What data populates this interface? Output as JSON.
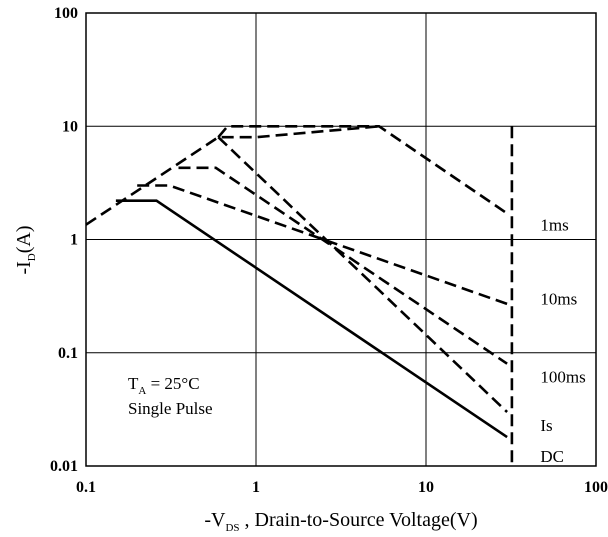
{
  "chart_data": {
    "type": "line",
    "x_scale": "log",
    "y_scale": "log",
    "xlim": [
      0.1,
      100
    ],
    "ylim": [
      0.01,
      100
    ],
    "grid": true,
    "x_ticks": [
      "0.1",
      "1",
      "10",
      "100"
    ],
    "y_ticks": [
      "100",
      "10",
      "1",
      "0.1",
      "0.01"
    ],
    "xlabel": {
      "prefix": "-V",
      "sub": "DS",
      "suffix": " , Drain-to-Source Voltage(V)"
    },
    "ylabel": {
      "prefix": "-I",
      "sub": "D",
      "suffix": "(A)"
    },
    "annotation": {
      "line1_prefix": "T",
      "line1_sub": "A",
      "line1_suffix": " = 25°C",
      "line2": "Single Pulse"
    },
    "series": [
      {
        "name": "1ms",
        "dashed": true,
        "points": [
          [
            0.1,
            1.35
          ],
          [
            0.6,
            8.0
          ],
          [
            1.0,
            8.0
          ],
          [
            5.3,
            10.0
          ]
        ]
      },
      {
        "name": "10ms",
        "dashed": true,
        "points": [
          [
            0.2,
            3.0
          ],
          [
            0.31,
            3.0
          ],
          [
            30.0,
            0.27
          ]
        ]
      },
      {
        "name": "100ms",
        "dashed": true,
        "points": [
          [
            0.35,
            4.3
          ],
          [
            0.58,
            4.3
          ],
          [
            30.0,
            0.08
          ]
        ]
      },
      {
        "name": "Is",
        "dashed": true,
        "points": [
          [
            0.6,
            8.0
          ],
          [
            30.0,
            0.03
          ]
        ]
      },
      {
        "name": "DC",
        "dashed": false,
        "points": [
          [
            0.15,
            2.2
          ],
          [
            0.26,
            2.2
          ],
          [
            30.0,
            0.018
          ]
        ]
      },
      {
        "name": "",
        "dashed": true,
        "points": [
          [
            0.6,
            8.0
          ],
          [
            0.68,
            10.0
          ],
          [
            5.3,
            10.0
          ],
          [
            30.0,
            1.7
          ]
        ]
      },
      {
        "name": "",
        "dashed": true,
        "points": [
          [
            32.0,
            10.0
          ],
          [
            32.0,
            0.01
          ]
        ]
      }
    ],
    "series_labels": [
      {
        "text": "1ms",
        "x": 40,
        "y": 1.35
      },
      {
        "text": "10ms",
        "x": 40,
        "y": 0.3
      },
      {
        "text": "100ms",
        "x": 40,
        "y": 0.062
      },
      {
        "text": "Is",
        "x": 40,
        "y": 0.023
      },
      {
        "text": "DC",
        "x": 40,
        "y": 0.0122
      }
    ]
  }
}
